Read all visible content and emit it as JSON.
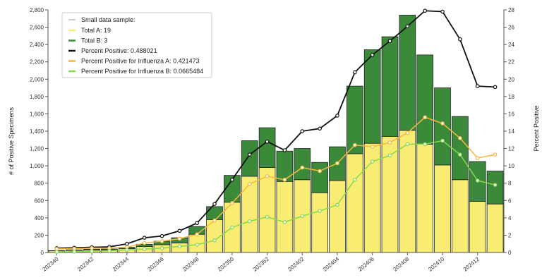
{
  "chart_data": {
    "type": "bar",
    "stacked": true,
    "categories": [
      "202340",
      "202341",
      "202342",
      "202343",
      "202344",
      "202345",
      "202346",
      "202347",
      "202348",
      "202349",
      "202350",
      "202351",
      "202352",
      "202401",
      "202402",
      "202403",
      "202404",
      "202405",
      "202406",
      "202407",
      "202408",
      "202409",
      "202410",
      "202411",
      "202412",
      "202413"
    ],
    "tick_labels": [
      "202340",
      "202342",
      "202344",
      "202346",
      "202348",
      "202350",
      "202352",
      "202402",
      "202404",
      "202406",
      "202408",
      "202410",
      "202412"
    ],
    "ylabel": "# of Positive Specimens",
    "y2label": "Percent Positive",
    "xlabel": "",
    "ylim": [
      0,
      2800
    ],
    "y2lim": [
      0,
      28
    ],
    "y_ticks": [
      "0",
      "200",
      "400",
      "600",
      "800",
      "1,000",
      "1,200",
      "1,400",
      "1,600",
      "1,800",
      "2,000",
      "2,200",
      "2,400",
      "2,600",
      "2,800"
    ],
    "y2_ticks": [
      "0",
      "2",
      "4",
      "6",
      "8",
      "10",
      "12",
      "14",
      "16",
      "18",
      "20",
      "22",
      "24",
      "26",
      "28"
    ],
    "series": [
      {
        "name": "Total A",
        "kind": "bar",
        "color": "#f9ec73",
        "values": [
          19,
          25,
          30,
          30,
          45,
          70,
          90,
          110,
          210,
          380,
          580,
          880,
          980,
          820,
          840,
          690,
          830,
          1140,
          1260,
          1340,
          1410,
          1250,
          1010,
          840,
          590,
          560
        ]
      },
      {
        "name": "Total B",
        "kind": "bar",
        "color": "#3a8a3a",
        "values": [
          3,
          5,
          8,
          10,
          15,
          25,
          40,
          60,
          90,
          150,
          310,
          410,
          460,
          350,
          360,
          350,
          390,
          780,
          1080,
          1150,
          1330,
          1030,
          890,
          730,
          460,
          380
        ]
      },
      {
        "name": "Percent Positive",
        "kind": "line",
        "color": "#111111",
        "values": [
          0.49,
          0.55,
          0.6,
          0.65,
          1.0,
          1.7,
          1.9,
          2.5,
          3.4,
          5.6,
          8.4,
          11.3,
          12.8,
          11.8,
          14.0,
          14.3,
          15.8,
          20.8,
          22.8,
          24.4,
          26.1,
          27.9,
          27.8,
          24.6,
          19.2,
          19.1
        ]
      },
      {
        "name": "Percent Positive for Influenza A",
        "kind": "line",
        "color": "#f5b83d",
        "values": [
          0.42,
          0.45,
          0.5,
          0.5,
          0.6,
          1.1,
          1.3,
          1.6,
          2.1,
          3.7,
          5.7,
          7.9,
          8.8,
          8.4,
          9.8,
          9.4,
          10.3,
          12.4,
          12.2,
          12.7,
          13.8,
          15.6,
          14.9,
          13.2,
          10.9,
          11.3
        ]
      },
      {
        "name": "Percent Positive for Influenza B",
        "kind": "line",
        "color": "#84d94c",
        "values": [
          0.07,
          0.1,
          0.15,
          0.2,
          0.3,
          0.4,
          0.5,
          0.7,
          0.9,
          1.4,
          2.9,
          3.6,
          4.1,
          3.5,
          4.2,
          4.8,
          5.5,
          8.4,
          10.5,
          11.2,
          12.5,
          12.5,
          12.9,
          11.3,
          8.3,
          7.8
        ]
      }
    ],
    "legend": {
      "placement": "top-left",
      "header": "Small data sample:",
      "header_color": "#cccccc",
      "entries": [
        {
          "label": "Total A: 19",
          "color": "#f9ec73"
        },
        {
          "label": "Total B: 3",
          "color": "#3a8a3a"
        },
        {
          "label": "Percent Positive: 0.488021",
          "color": "#111111"
        },
        {
          "label": "Percent Positive for Influenza A: 0.421473",
          "color": "#f5b83d"
        },
        {
          "label": "Percent Positive for Influenza B: 0.0665484",
          "color": "#84d94c"
        }
      ]
    },
    "grid": false
  }
}
